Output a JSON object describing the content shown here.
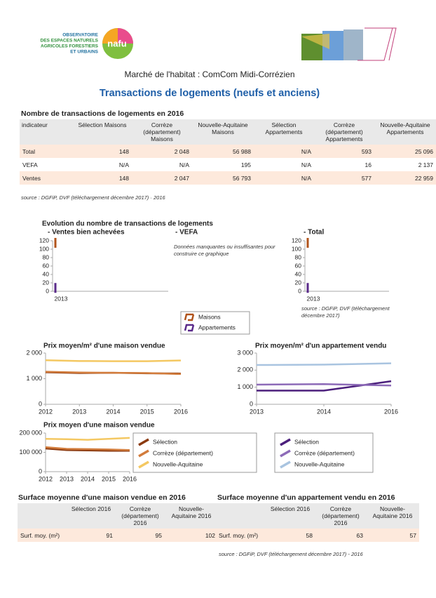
{
  "header": {
    "logo_lines": [
      "OBSERVATOIRE",
      "DES ESPACES NATURELS",
      "AGRICOLES FORESTIERS",
      "ET URBAINS"
    ],
    "logo_badge": "nafu",
    "subtitle": "Marché de l'habitat : ComCom Midi-Corrézien",
    "title": "Transactions de logements (neufs et anciens)"
  },
  "table1": {
    "title": "Nombre de transactions de logements en 2016",
    "columns": [
      "indicateur",
      "Sélection Maisons",
      "Corrèze (département) Maisons",
      "Nouvelle-Aquitaine Maisons",
      "Sélection Appartements",
      "Corrèze (département) Appartements",
      "Nouvelle-Aquitaine Appartements"
    ],
    "rows": [
      [
        "Total",
        "148",
        "2 048",
        "56 988",
        "N/A",
        "593",
        "25 096"
      ],
      [
        "VEFA",
        "N/A",
        "N/A",
        "195",
        "N/A",
        "16",
        "2 137"
      ],
      [
        "Ventes",
        "148",
        "2 047",
        "56 793",
        "N/A",
        "577",
        "22 959"
      ]
    ],
    "source": "source : DGFiP, DVF (téléchargement décembre 2017) · 2016"
  },
  "evolution": {
    "title": "Evolution du nombre de transactions de logements",
    "vefa_label": "- VEFA",
    "vefa_note": "Données manquantes ou insuffisantes pour construire ce graphique",
    "total_source": "source : DGFiP, DVF (téléchargement décembre 2017)",
    "charts": [
      {
        "type": "line",
        "subtitle": "- Ventes bien achevées",
        "categories": [
          "2013"
        ],
        "ylim": [
          0,
          120
        ],
        "yticks": [
          0,
          20,
          40,
          60,
          80,
          100,
          120
        ],
        "series": [
          {
            "name": "Maisons",
            "color": "#b0531b",
            "values": [
              115
            ]
          },
          {
            "name": "Appartements",
            "color": "#5a2a8a",
            "values": [
              8
            ]
          }
        ]
      },
      {
        "type": "line",
        "subtitle": "- Total",
        "categories": [
          "2013"
        ],
        "ylim": [
          0,
          120
        ],
        "yticks": [
          0,
          20,
          40,
          60,
          80,
          100,
          120
        ],
        "series": [
          {
            "color": "#b0531b",
            "values": [
              115
            ]
          },
          {
            "color": "#5a2a8a",
            "values": [
              8
            ]
          }
        ]
      }
    ]
  },
  "prices": [
    {
      "type": "line",
      "title": "Prix moyen/m² d'une maison vendue",
      "categories": [
        "2012",
        "2013",
        "2014",
        "2015",
        "2016"
      ],
      "ylim": [
        0,
        2000
      ],
      "yticks": [
        0,
        {
          "value": 1000,
          "label": "1 000"
        },
        {
          "value": 2000,
          "label": "2 000"
        }
      ],
      "series": [
        {
          "color": "#8b3a10",
          "values": [
            1250,
            1220,
            1230,
            1210,
            1200
          ]
        },
        {
          "color": "#d27c3c",
          "values": [
            1270,
            1240,
            1230,
            1220,
            1180
          ]
        },
        {
          "color": "#f4c862",
          "values": [
            1720,
            1690,
            1680,
            1680,
            1710
          ]
        }
      ]
    },
    {
      "type": "line",
      "title": "Prix moyen/m² d'un appartement vendu",
      "categories": [
        "2013",
        "2014",
        "2016"
      ],
      "ylim": [
        0,
        3000
      ],
      "yticks": [
        0,
        {
          "value": 1000,
          "label": "1 000"
        },
        {
          "value": 2000,
          "label": "2 000"
        },
        {
          "value": 3000,
          "label": "3 000"
        }
      ],
      "series": [
        {
          "name": "Sélection",
          "color": "#4b1f7c",
          "values": [
            800,
            800,
            1350
          ]
        },
        {
          "name": "Corrèze (département)",
          "color": "#8d6bb8",
          "values": [
            1150,
            1180,
            1100
          ]
        },
        {
          "name": "Nouvelle-Aquitaine",
          "color": "#a9c4e0",
          "values": [
            2300,
            2320,
            2400
          ]
        }
      ]
    },
    {
      "type": "line",
      "title": "Prix moyen d'une maison vendue",
      "categories": [
        "2012",
        "2013",
        "2014",
        "2015",
        "2016"
      ],
      "ylim": [
        0,
        200000
      ],
      "yticks": [
        0,
        {
          "value": 100000,
          "label": "100 000"
        },
        {
          "value": 200000,
          "label": "200 000"
        }
      ],
      "series": [
        {
          "name": "Sélection",
          "color": "#8b3a10",
          "values": [
            120000,
            112000,
            110000,
            108000,
            108000
          ]
        },
        {
          "name": "Corrèze (département)",
          "color": "#d27c3c",
          "values": [
            127000,
            118000,
            117000,
            115000,
            112000
          ]
        },
        {
          "name": "Nouvelle-Aquitaine",
          "color": "#f4c862",
          "values": [
            170000,
            168000,
            165000,
            170000,
            175000
          ]
        }
      ]
    }
  ],
  "table2": {
    "title": "Surface moyenne d'une maison vendue en 2016",
    "columns": [
      "Sélection 2016",
      "Corrèze (département) 2016",
      "Nouvelle-Aquitaine 2016"
    ],
    "rows": [
      [
        "Surf. moy. (m²)",
        "91",
        "95",
        "102"
      ]
    ]
  },
  "table3": {
    "title": "Surface moyenne d'un appartement vendu en 2016",
    "columns": [
      "Sélection 2016",
      "Corrèze (département) 2016",
      "Nouvelle-Aquitaine 2016"
    ],
    "rows": [
      [
        "Surf. moy. (m²)",
        "58",
        "63",
        "57"
      ]
    ],
    "source": "source : DGFiP, DVF (téléchargement décembre 2017) - 2016"
  }
}
